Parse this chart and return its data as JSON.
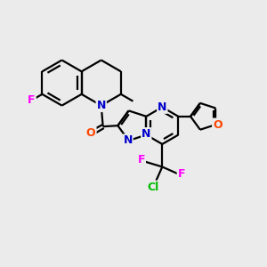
{
  "background_color": "#ebebeb",
  "bond_color": "#000000",
  "atom_colors": {
    "F": "#ff00ff",
    "N": "#0000cc",
    "O": "#ff4400",
    "Cl": "#00bb00",
    "C": "#000000"
  },
  "figsize": [
    3.0,
    3.0
  ],
  "dpi": 100,
  "lw": 1.6
}
